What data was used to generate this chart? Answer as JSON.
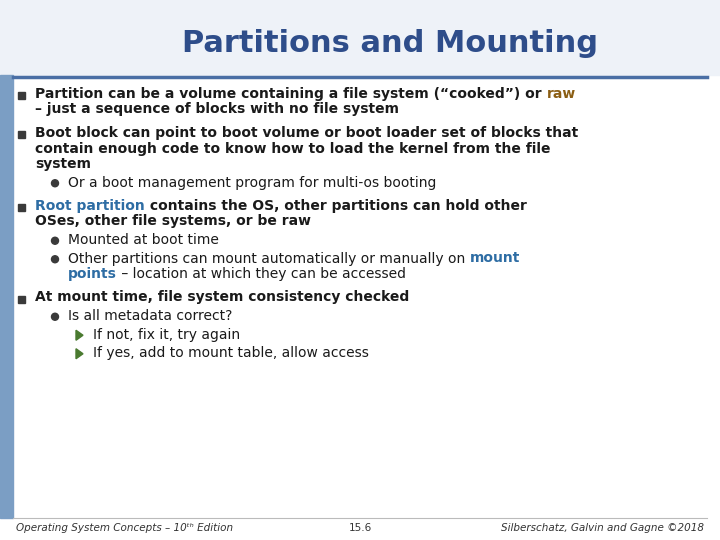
{
  "title": "Partitions and Mounting",
  "title_color": "#2E4D8A",
  "title_fontsize": 22,
  "background_color": "#FFFFFF",
  "header_bg_color": "#EEF2F8",
  "left_bar_color": "#7B9EC4",
  "separator_color": "#4A6FA5",
  "text_color": "#1A1A1A",
  "highlight_brown": "#8B5E14",
  "highlight_blue": "#2E6DA4",
  "green_color": "#4A7A30",
  "footer_left": "Operating System Concepts – 10ᵗʰ Edition",
  "footer_center": "15.6",
  "footer_right": "Silberschatz, Galvin and Gagne ©2018",
  "footer_fontsize": 7.5,
  "body_fontsize": 10.0,
  "items": [
    {
      "level": 0,
      "lines": [
        [
          {
            "text": "Partition can be a volume containing a file system (“cooked”) or ",
            "color": "#1A1A1A",
            "bold": true
          },
          {
            "text": "raw",
            "color": "#8B5E14",
            "bold": true
          }
        ],
        [
          {
            "text": "– just a sequence of blocks with no file system",
            "color": "#1A1A1A",
            "bold": true
          }
        ]
      ]
    },
    {
      "level": 0,
      "lines": [
        [
          {
            "text": "Boot block can point to boot volume or boot loader set of blocks that",
            "color": "#1A1A1A",
            "bold": true
          }
        ],
        [
          {
            "text": "contain enough code to know how to load the kernel from the file",
            "color": "#1A1A1A",
            "bold": true
          }
        ],
        [
          {
            "text": "system",
            "color": "#1A1A1A",
            "bold": true
          }
        ]
      ]
    },
    {
      "level": 1,
      "lines": [
        [
          {
            "text": "Or a boot management program for multi-os booting",
            "color": "#1A1A1A",
            "bold": false
          }
        ]
      ]
    },
    {
      "level": 0,
      "lines": [
        [
          {
            "text": "Root partition",
            "color": "#2E6DA4",
            "bold": true
          },
          {
            "text": " contains the OS, other partitions can hold other",
            "color": "#1A1A1A",
            "bold": true
          }
        ],
        [
          {
            "text": "OSes, other file systems, or be raw",
            "color": "#1A1A1A",
            "bold": true
          }
        ]
      ]
    },
    {
      "level": 1,
      "lines": [
        [
          {
            "text": "Mounted at boot time",
            "color": "#1A1A1A",
            "bold": false
          }
        ]
      ]
    },
    {
      "level": 1,
      "lines": [
        [
          {
            "text": "Other partitions can mount automatically or manually on ",
            "color": "#1A1A1A",
            "bold": false
          },
          {
            "text": "mount",
            "color": "#2E6DA4",
            "bold": true
          }
        ],
        [
          {
            "text": "points",
            "color": "#2E6DA4",
            "bold": true
          },
          {
            "text": " – location at which they can be accessed",
            "color": "#1A1A1A",
            "bold": false
          }
        ]
      ]
    },
    {
      "level": 0,
      "lines": [
        [
          {
            "text": "At mount time, file system consistency checked",
            "color": "#1A1A1A",
            "bold": true
          }
        ]
      ]
    },
    {
      "level": 1,
      "lines": [
        [
          {
            "text": "Is all metadata correct?",
            "color": "#1A1A1A",
            "bold": false
          }
        ]
      ]
    },
    {
      "level": 2,
      "lines": [
        [
          {
            "text": "If not, fix it, try again",
            "color": "#1A1A1A",
            "bold": false
          }
        ]
      ]
    },
    {
      "level": 2,
      "lines": [
        [
          {
            "text": "If yes, add to mount table, allow access",
            "color": "#1A1A1A",
            "bold": false
          }
        ]
      ]
    }
  ]
}
